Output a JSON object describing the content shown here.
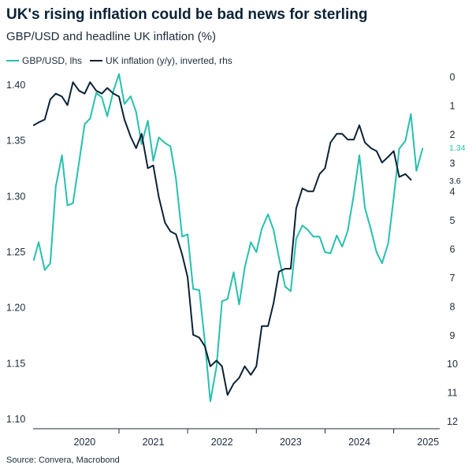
{
  "header": {
    "title": "UK's rising inflation could be bad news for sterling",
    "subtitle": "GBP/USD and headline UK inflation (%)"
  },
  "footer": {
    "source": "Source: Convera, Macrobond"
  },
  "colors": {
    "gbpusd": "#27c0ad",
    "inflation": "#0b2236",
    "axis": "#1b2b3b"
  },
  "chart_data": {
    "type": "line",
    "title": "UK's rising inflation could be bad news for sterling",
    "subtitle": "GBP/USD and headline UK inflation (%)",
    "legend_position": "top-left",
    "x": {
      "start": 2019.75,
      "end": 2025.67,
      "tick_labels": [
        "2020",
        "2021",
        "2022",
        "2023",
        "2024",
        "2025"
      ],
      "tick_values": [
        2020.5,
        2021.5,
        2022.5,
        2023.5,
        2024.5,
        2025.5
      ],
      "separators": [
        2021,
        2022,
        2023,
        2024,
        2025
      ]
    },
    "y_left": {
      "range": [
        1.1,
        1.4
      ],
      "tick_values": [
        1.1,
        1.15,
        1.2,
        1.25,
        1.3,
        1.35,
        1.4
      ],
      "tick_labels": [
        "1.10",
        "1.15",
        "1.20",
        "1.25",
        "1.30",
        "1.35",
        "1.40"
      ]
    },
    "y_right": {
      "range": [
        0,
        12
      ],
      "inverted": true,
      "tick_values": [
        0,
        1,
        2,
        3,
        4,
        5,
        6,
        7,
        8,
        9,
        10,
        11,
        12
      ],
      "tick_labels": [
        "0",
        "1",
        "2",
        "3",
        "4",
        "5",
        "6",
        "7",
        "8",
        "9",
        "10",
        "11",
        "12"
      ]
    },
    "series": [
      {
        "name": "GBP/USD, lhs",
        "axis": "left",
        "end_label": "1.34",
        "points": [
          [
            2019.76,
            1.243
          ],
          [
            2019.83,
            1.259
          ],
          [
            2019.92,
            1.234
          ],
          [
            2020.0,
            1.24
          ],
          [
            2020.08,
            1.309
          ],
          [
            2020.17,
            1.337
          ],
          [
            2020.25,
            1.292
          ],
          [
            2020.33,
            1.294
          ],
          [
            2020.42,
            1.331
          ],
          [
            2020.5,
            1.365
          ],
          [
            2020.58,
            1.37
          ],
          [
            2020.67,
            1.393
          ],
          [
            2020.75,
            1.389
          ],
          [
            2020.83,
            1.372
          ],
          [
            2020.92,
            1.395
          ],
          [
            2021.0,
            1.41
          ],
          [
            2021.08,
            1.383
          ],
          [
            2021.17,
            1.39
          ],
          [
            2021.25,
            1.376
          ],
          [
            2021.33,
            1.347
          ],
          [
            2021.42,
            1.368
          ],
          [
            2021.5,
            1.332
          ],
          [
            2021.58,
            1.353
          ],
          [
            2021.67,
            1.348
          ],
          [
            2021.75,
            1.345
          ],
          [
            2021.83,
            1.316
          ],
          [
            2021.92,
            1.264
          ],
          [
            2022.0,
            1.266
          ],
          [
            2022.08,
            1.217
          ],
          [
            2022.17,
            1.216
          ],
          [
            2022.25,
            1.17
          ],
          [
            2022.33,
            1.116
          ],
          [
            2022.42,
            1.147
          ],
          [
            2022.5,
            1.206
          ],
          [
            2022.58,
            1.208
          ],
          [
            2022.67,
            1.232
          ],
          [
            2022.75,
            1.203
          ],
          [
            2022.83,
            1.236
          ],
          [
            2022.92,
            1.259
          ],
          [
            2023.0,
            1.25
          ],
          [
            2023.08,
            1.271
          ],
          [
            2023.17,
            1.284
          ],
          [
            2023.25,
            1.27
          ],
          [
            2023.33,
            1.245
          ],
          [
            2023.42,
            1.219
          ],
          [
            2023.5,
            1.215
          ],
          [
            2023.58,
            1.262
          ],
          [
            2023.67,
            1.274
          ],
          [
            2023.75,
            1.27
          ],
          [
            2023.83,
            1.264
          ],
          [
            2023.92,
            1.264
          ],
          [
            2024.0,
            1.25
          ],
          [
            2024.08,
            1.249
          ],
          [
            2024.17,
            1.265
          ],
          [
            2024.25,
            1.255
          ],
          [
            2024.33,
            1.269
          ],
          [
            2024.42,
            1.302
          ],
          [
            2024.5,
            1.337
          ],
          [
            2024.58,
            1.29
          ],
          [
            2024.67,
            1.27
          ],
          [
            2024.75,
            1.25
          ],
          [
            2024.83,
            1.24
          ],
          [
            2024.92,
            1.258
          ],
          [
            2025.0,
            1.299
          ],
          [
            2025.08,
            1.343
          ],
          [
            2025.17,
            1.35
          ],
          [
            2025.25,
            1.374
          ],
          [
            2025.33,
            1.323
          ],
          [
            2025.42,
            1.343
          ]
        ]
      },
      {
        "name": "UK inflation (y/y), inverted, rhs",
        "axis": "right",
        "end_label": "3.6",
        "points": [
          [
            2019.76,
            1.7
          ],
          [
            2019.83,
            1.6
          ],
          [
            2019.92,
            1.5
          ],
          [
            2020.0,
            0.8
          ],
          [
            2020.08,
            0.6
          ],
          [
            2020.17,
            0.7
          ],
          [
            2020.25,
            1.0
          ],
          [
            2020.33,
            0.2
          ],
          [
            2020.42,
            0.5
          ],
          [
            2020.5,
            0.6
          ],
          [
            2020.58,
            0.2
          ],
          [
            2020.67,
            0.5
          ],
          [
            2020.75,
            0.6
          ],
          [
            2020.83,
            0.4
          ],
          [
            2020.92,
            0.6
          ],
          [
            2021.0,
            0.7
          ],
          [
            2021.08,
            1.5
          ],
          [
            2021.17,
            2.1
          ],
          [
            2021.25,
            2.5
          ],
          [
            2021.33,
            2.0
          ],
          [
            2021.42,
            3.2
          ],
          [
            2021.5,
            3.1
          ],
          [
            2021.58,
            4.2
          ],
          [
            2021.67,
            5.1
          ],
          [
            2021.75,
            5.4
          ],
          [
            2021.83,
            5.5
          ],
          [
            2021.92,
            6.2
          ],
          [
            2022.0,
            7.0
          ],
          [
            2022.08,
            9.0
          ],
          [
            2022.17,
            9.1
          ],
          [
            2022.25,
            9.4
          ],
          [
            2022.33,
            10.1
          ],
          [
            2022.42,
            9.9
          ],
          [
            2022.5,
            10.1
          ],
          [
            2022.58,
            11.1
          ],
          [
            2022.67,
            10.7
          ],
          [
            2022.75,
            10.5
          ],
          [
            2022.83,
            10.1
          ],
          [
            2022.92,
            10.4
          ],
          [
            2023.0,
            10.1
          ],
          [
            2023.08,
            8.7
          ],
          [
            2023.17,
            8.7
          ],
          [
            2023.25,
            7.9
          ],
          [
            2023.33,
            6.8
          ],
          [
            2023.42,
            6.7
          ],
          [
            2023.5,
            6.7
          ],
          [
            2023.58,
            4.6
          ],
          [
            2023.67,
            3.9
          ],
          [
            2023.75,
            4.0
          ],
          [
            2023.83,
            4.0
          ],
          [
            2023.92,
            3.4
          ],
          [
            2024.0,
            3.2
          ],
          [
            2024.08,
            2.3
          ],
          [
            2024.17,
            2.0
          ],
          [
            2024.25,
            2.0
          ],
          [
            2024.33,
            2.2
          ],
          [
            2024.42,
            2.2
          ],
          [
            2024.5,
            1.7
          ],
          [
            2024.58,
            2.3
          ],
          [
            2024.67,
            2.5
          ],
          [
            2024.75,
            2.6
          ],
          [
            2024.83,
            3.0
          ],
          [
            2024.92,
            2.8
          ],
          [
            2025.0,
            2.6
          ],
          [
            2025.08,
            3.5
          ],
          [
            2025.17,
            3.4
          ],
          [
            2025.25,
            3.6
          ]
        ]
      }
    ]
  }
}
